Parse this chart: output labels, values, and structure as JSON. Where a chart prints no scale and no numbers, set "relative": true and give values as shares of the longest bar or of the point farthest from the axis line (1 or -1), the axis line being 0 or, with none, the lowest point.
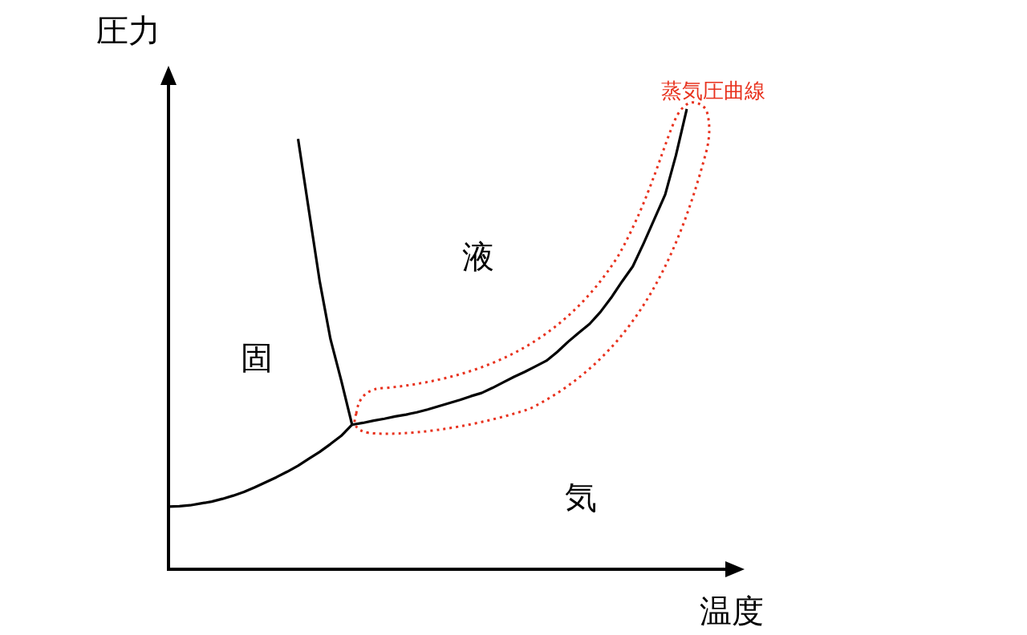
{
  "chart_data": {
    "type": "line",
    "relative": true,
    "xlabel": "温度",
    "ylabel": "圧力",
    "marker": "none",
    "line_style": "solid",
    "annotations": [
      "固",
      "液",
      "気",
      "蒸気圧曲線"
    ],
    "categories": [
      null,
      null,
      null,
      null,
      null,
      null,
      null,
      null,
      null,
      null,
      null,
      null,
      null,
      null,
      null,
      null,
      null,
      null,
      null,
      null,
      null,
      null,
      null,
      null,
      null,
      null,
      null,
      null,
      null,
      null,
      null,
      null,
      null,
      null,
      null,
      null,
      null,
      null,
      null,
      null,
      null,
      null,
      null,
      null,
      null,
      null,
      null,
      null,
      null
    ],
    "series": [
      {
        "color": "#000000",
        "values": [
          0.136,
          0.137,
          0.139,
          0.143,
          0.147,
          0.153,
          0.16,
          0.168,
          0.178,
          0.189,
          0.2,
          0.212,
          0.225,
          0.24,
          0.255,
          0.272,
          0.29,
          0.314,
          null,
          null,
          null,
          null,
          null,
          null,
          null,
          null,
          null,
          null,
          null,
          null,
          null,
          null,
          null,
          null,
          null,
          null,
          null,
          null,
          null,
          null,
          null,
          null,
          null,
          null,
          null,
          null,
          null,
          null,
          null
        ]
      },
      {
        "color": "#000000",
        "values": [
          null,
          null,
          null,
          null,
          null,
          null,
          null,
          null,
          null,
          null,
          null,
          null,
          0.935,
          0.78,
          0.626,
          0.5,
          0.41,
          0.314,
          null,
          null,
          null,
          null,
          null,
          null,
          null,
          null,
          null,
          null,
          null,
          null,
          null,
          null,
          null,
          null,
          null,
          null,
          null,
          null,
          null,
          null,
          null,
          null,
          null,
          null,
          null,
          null,
          null,
          null,
          null
        ]
      },
      {
        "color": "#000000",
        "values": [
          null,
          null,
          null,
          null,
          null,
          null,
          null,
          null,
          null,
          null,
          null,
          null,
          null,
          null,
          null,
          null,
          null,
          0.314,
          0.318,
          0.323,
          0.327,
          0.332,
          0.336,
          0.341,
          0.347,
          0.354,
          0.361,
          0.368,
          0.376,
          0.383,
          0.394,
          0.406,
          0.418,
          0.429,
          0.441,
          0.453,
          0.472,
          0.494,
          0.514,
          0.533,
          0.559,
          0.59,
          0.625,
          0.658,
          0.708,
          0.761,
          0.814,
          0.9,
          1.0
        ]
      }
    ]
  }
}
